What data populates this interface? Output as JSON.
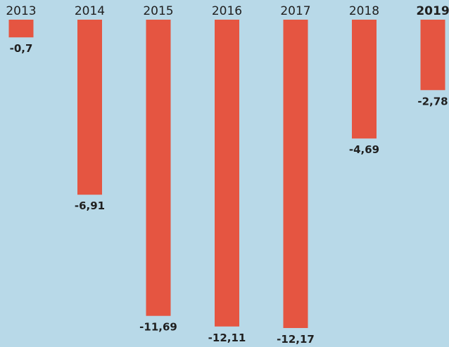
{
  "colors": {
    "background": "#b8d9e8",
    "bar": "#e55541",
    "text": "#1f1f1f"
  },
  "chart_data": {
    "type": "bar",
    "categories": [
      "2013",
      "2014",
      "2015",
      "2016",
      "2017",
      "2018",
      "2019"
    ],
    "values": [
      -0.7,
      -6.91,
      -11.69,
      -12.11,
      -12.17,
      -4.69,
      -2.78
    ],
    "value_labels": [
      "-0,7",
      "-6,91",
      "-11,69",
      "-12,11",
      "-12,17",
      "-4,69",
      "-2,78"
    ],
    "highlighted_category": "2019",
    "ylim": [
      -12.17,
      0
    ],
    "grid": false,
    "legend": "none",
    "category_axis_position": "top"
  }
}
